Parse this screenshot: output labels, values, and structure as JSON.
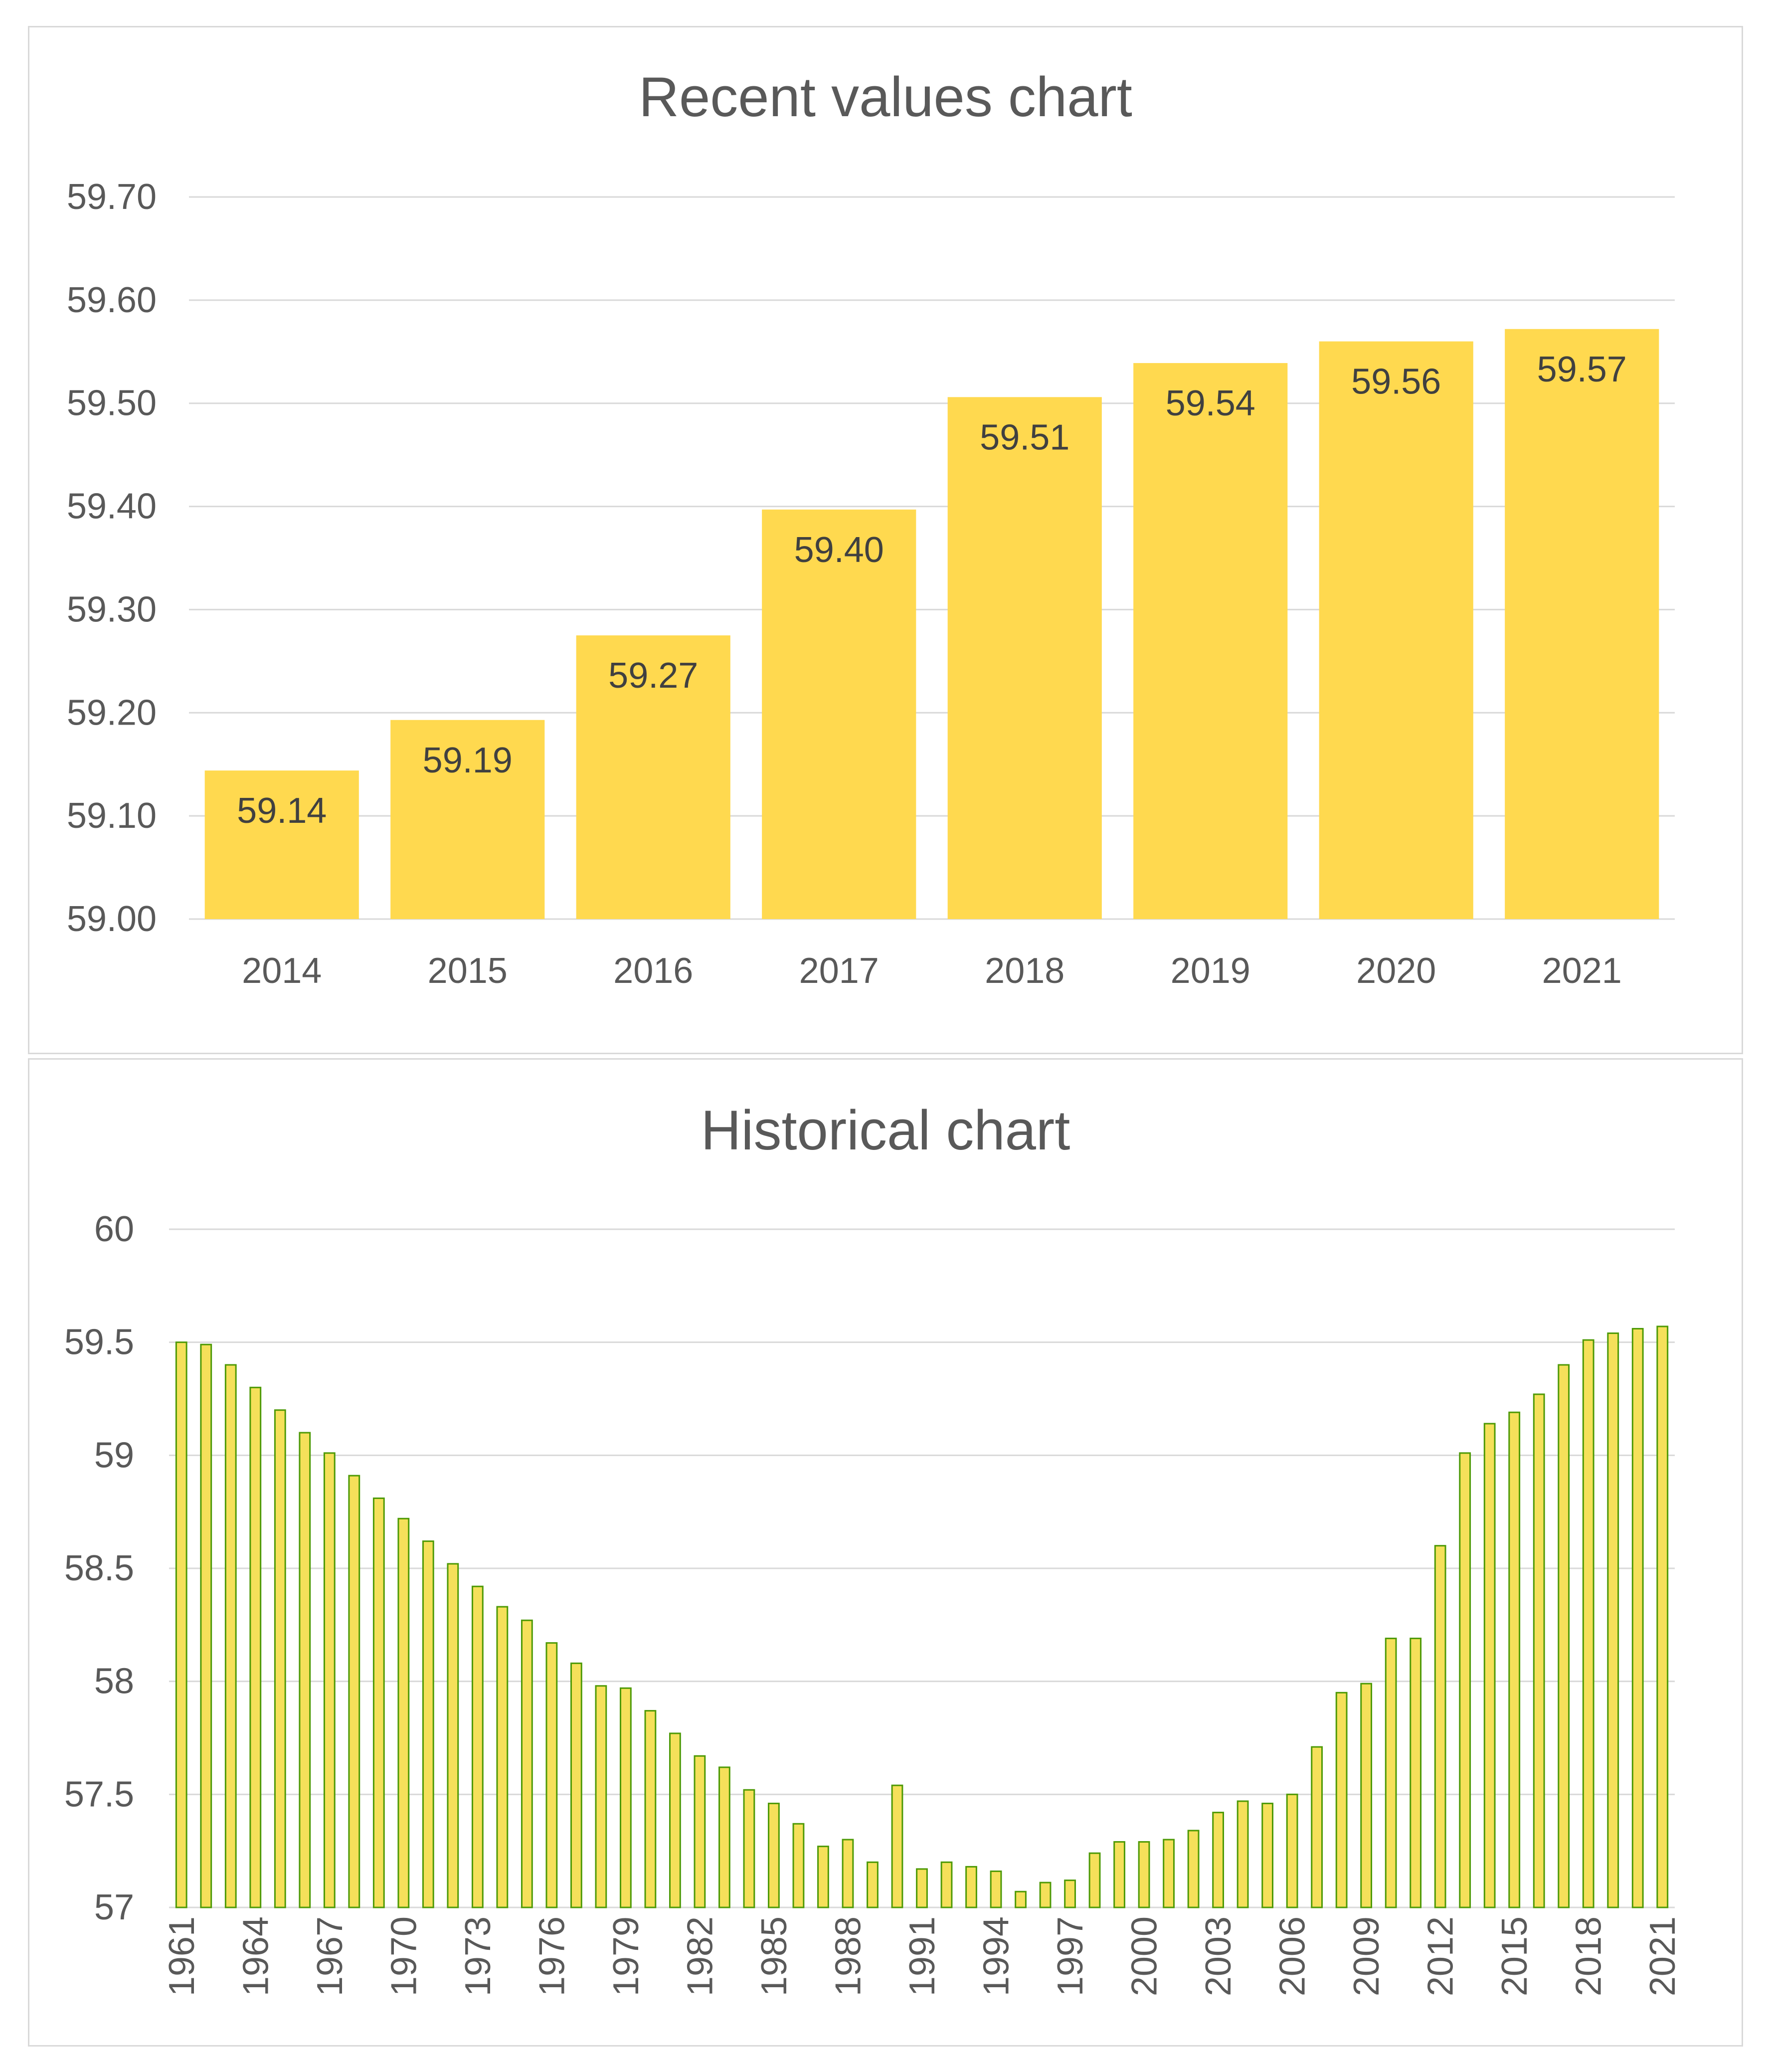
{
  "colors": {
    "bar_fill": "#FFD94F",
    "bar_outline_historical": "#4E9A06",
    "historical_fill": "#F5E05A",
    "gridline": "#D9D9D9",
    "text": "#595959",
    "label_text": "#404040"
  },
  "chart_data": [
    {
      "type": "bar",
      "title": "Recent values chart",
      "categories": [
        "2014",
        "2015",
        "2016",
        "2017",
        "2018",
        "2019",
        "2020",
        "2021"
      ],
      "values": [
        59.144,
        59.193,
        59.275,
        59.397,
        59.506,
        59.539,
        59.56,
        59.572
      ],
      "data_labels": [
        "59.14",
        "59.19",
        "59.27",
        "59.40",
        "59.51",
        "59.54",
        "59.56",
        "59.57"
      ],
      "ylim": [
        59.0,
        59.7
      ],
      "yticks": [
        59.0,
        59.1,
        59.2,
        59.3,
        59.4,
        59.5,
        59.6,
        59.7
      ],
      "ytick_labels": [
        "59.00",
        "59.10",
        "59.20",
        "59.30",
        "59.40",
        "59.50",
        "59.60",
        "59.70"
      ],
      "grid": true,
      "xlabel": "",
      "ylabel": ""
    },
    {
      "type": "bar",
      "title": "Historical chart",
      "x": [
        1961,
        1962,
        1963,
        1964,
        1965,
        1966,
        1967,
        1968,
        1969,
        1970,
        1971,
        1972,
        1973,
        1974,
        1975,
        1976,
        1977,
        1978,
        1979,
        1980,
        1981,
        1982,
        1983,
        1984,
        1985,
        1986,
        1987,
        1988,
        1989,
        1990,
        1991,
        1992,
        1993,
        1994,
        1995,
        1996,
        1997,
        1998,
        1999,
        2000,
        2001,
        2002,
        2003,
        2004,
        2005,
        2006,
        2007,
        2008,
        2009,
        2010,
        2011,
        2012,
        2013,
        2014,
        2015,
        2016,
        2017,
        2018,
        2019,
        2020,
        2021
      ],
      "values": [
        59.5,
        59.49,
        59.4,
        59.3,
        59.2,
        59.1,
        59.01,
        58.91,
        58.81,
        58.72,
        58.62,
        58.52,
        58.42,
        58.33,
        58.27,
        58.17,
        58.08,
        57.98,
        57.97,
        57.87,
        57.77,
        57.67,
        57.62,
        57.52,
        57.46,
        57.37,
        57.27,
        57.3,
        57.2,
        57.54,
        57.17,
        57.2,
        57.18,
        57.16,
        57.07,
        57.11,
        57.12,
        57.24,
        57.29,
        57.29,
        57.3,
        57.34,
        57.42,
        57.47,
        57.46,
        57.5,
        57.71,
        57.95,
        57.99,
        58.19,
        58.19,
        58.6,
        59.01,
        59.14,
        59.19,
        59.27,
        59.4,
        59.51,
        59.54,
        59.56,
        59.57
      ],
      "xtick_labels": [
        "1961",
        "1964",
        "1967",
        "1970",
        "1973",
        "1976",
        "1979",
        "1982",
        "1985",
        "1988",
        "1991",
        "1994",
        "1997",
        "2000",
        "2003",
        "2006",
        "2009",
        "2012",
        "2015",
        "2018",
        "2021"
      ],
      "ylim": [
        57,
        60
      ],
      "yticks": [
        57,
        57.5,
        58,
        58.5,
        59,
        59.5,
        60
      ],
      "ytick_labels": [
        "57",
        "57.5",
        "58",
        "58.5",
        "59",
        "59.5",
        "60"
      ],
      "grid": true,
      "xlabel": "",
      "ylabel": ""
    }
  ]
}
